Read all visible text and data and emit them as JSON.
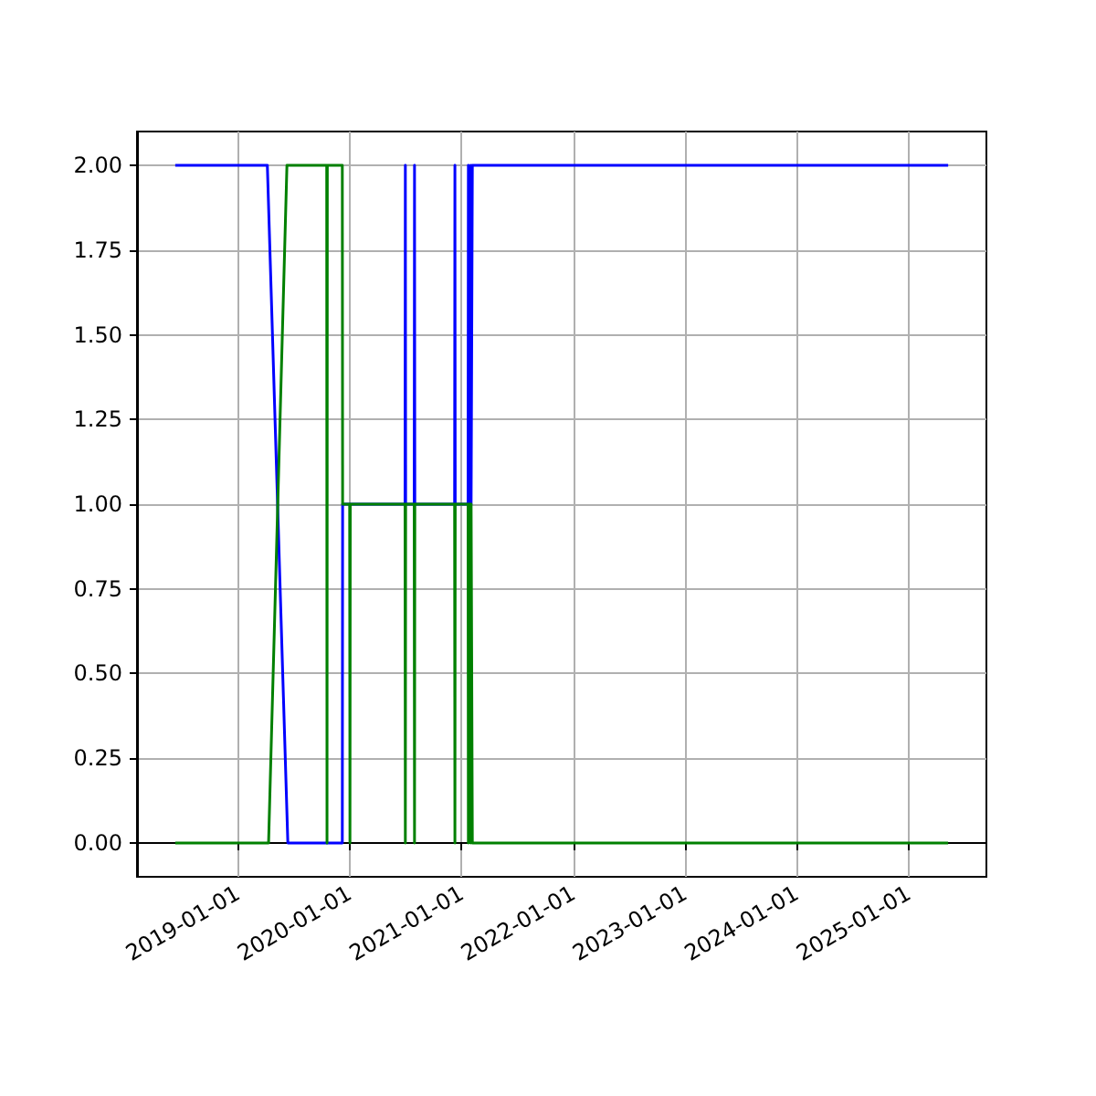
{
  "chart_data": {
    "type": "line",
    "xlim": [
      "2018-02-05",
      "2025-09-12"
    ],
    "ylim": [
      -0.1,
      2.1
    ],
    "xticks": [
      "2019-01-01",
      "2020-01-01",
      "2021-01-01",
      "2022-01-01",
      "2023-01-01",
      "2024-01-01",
      "2025-01-01"
    ],
    "yticks": [
      {
        "value": 0,
        "label": "0.00"
      },
      {
        "value": 0.25,
        "label": "0.25"
      },
      {
        "value": 0.5,
        "label": "0.50"
      },
      {
        "value": 0.75,
        "label": "0.75"
      },
      {
        "value": 1,
        "label": "1.00"
      },
      {
        "value": 1.25,
        "label": "1.25"
      },
      {
        "value": 1.5,
        "label": "1.50"
      },
      {
        "value": 1.75,
        "label": "1.75"
      },
      {
        "value": 2,
        "label": "2.00"
      }
    ],
    "grid": true,
    "marker": "none",
    "line_style": "solid",
    "series": [
      {
        "color": "#0000ff",
        "x": [
          "2018-06-10",
          "2019-04-07",
          "2019-06-13",
          "2019-12-08",
          "2019-12-09",
          "2020-06-30",
          "2020-07-01",
          "2020-07-02",
          "2020-07-30",
          "2020-07-31",
          "2020-08-01",
          "2020-12-09",
          "2020-12-10",
          "2020-12-11",
          "2021-01-22",
          "2021-01-23",
          "2021-01-24",
          "2021-01-30",
          "2021-01-31",
          "2021-02-01",
          "2021-02-04",
          "2021-02-05",
          "2025-05-10"
        ],
        "values": [
          2,
          2,
          0,
          0,
          1,
          1,
          2,
          1,
          1,
          2,
          1,
          1,
          2,
          1,
          1,
          2,
          1,
          1,
          2,
          1,
          1,
          2,
          2
        ]
      },
      {
        "color": "#008000",
        "x": [
          "2018-06-10",
          "2019-04-11",
          "2019-06-10",
          "2019-10-18",
          "2019-10-19",
          "2019-10-20",
          "2019-12-08",
          "2019-12-09",
          "2020-01-01",
          "2020-01-02",
          "2020-01-03",
          "2020-06-30",
          "2020-07-01",
          "2020-07-02",
          "2020-07-30",
          "2020-07-31",
          "2020-08-01",
          "2020-12-09",
          "2020-12-10",
          "2020-12-11",
          "2021-01-22",
          "2021-01-23",
          "2021-01-24",
          "2021-01-30",
          "2021-01-31",
          "2021-02-01",
          "2021-02-04",
          "2021-02-05",
          "2025-05-10"
        ],
        "values": [
          0,
          0,
          2,
          2,
          0,
          2,
          2,
          1,
          1,
          0,
          1,
          1,
          0,
          1,
          1,
          0,
          1,
          1,
          0,
          1,
          1,
          0,
          1,
          1,
          0,
          1,
          1,
          0,
          0
        ]
      }
    ]
  }
}
